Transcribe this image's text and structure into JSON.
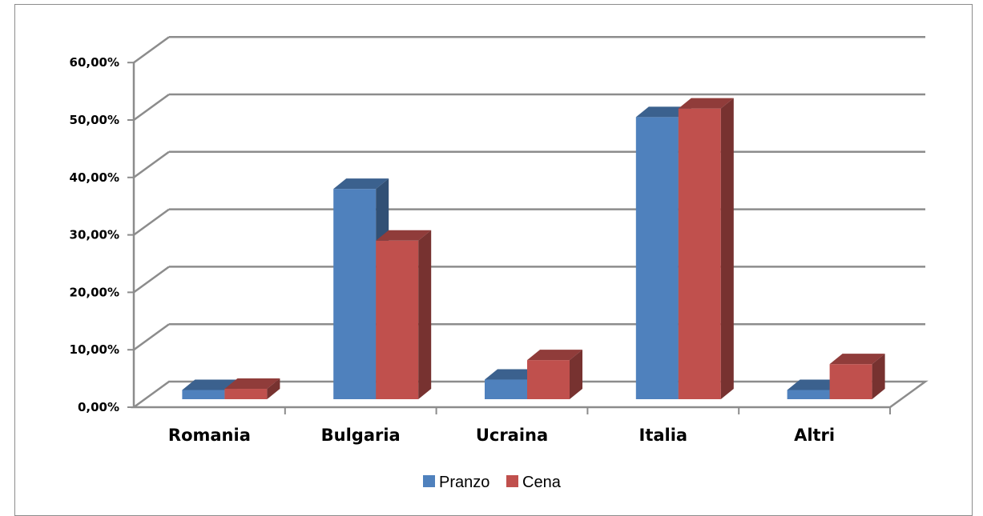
{
  "chart_data": {
    "type": "bar",
    "three_d": true,
    "categories": [
      "Romania",
      "Bulgaria",
      "Ucraina",
      "Italia",
      "Altri"
    ],
    "series": [
      {
        "name": "Pranzo",
        "color": "#4f81bd",
        "values": [
          3.0,
          38.0,
          4.8,
          50.5,
          3.0
        ]
      },
      {
        "name": "Cena",
        "color": "#c0504d",
        "values": [
          3.2,
          29.0,
          8.2,
          52.0,
          7.5
        ]
      }
    ],
    "yticks": [
      "0,00%",
      "10,00%",
      "20,00%",
      "30,00%",
      "40,00%",
      "50,00%",
      "60,00%"
    ],
    "ylim": [
      0,
      60
    ],
    "grid": true,
    "legend": "bottom",
    "title": "",
    "xlabel": "",
    "ylabel": ""
  }
}
